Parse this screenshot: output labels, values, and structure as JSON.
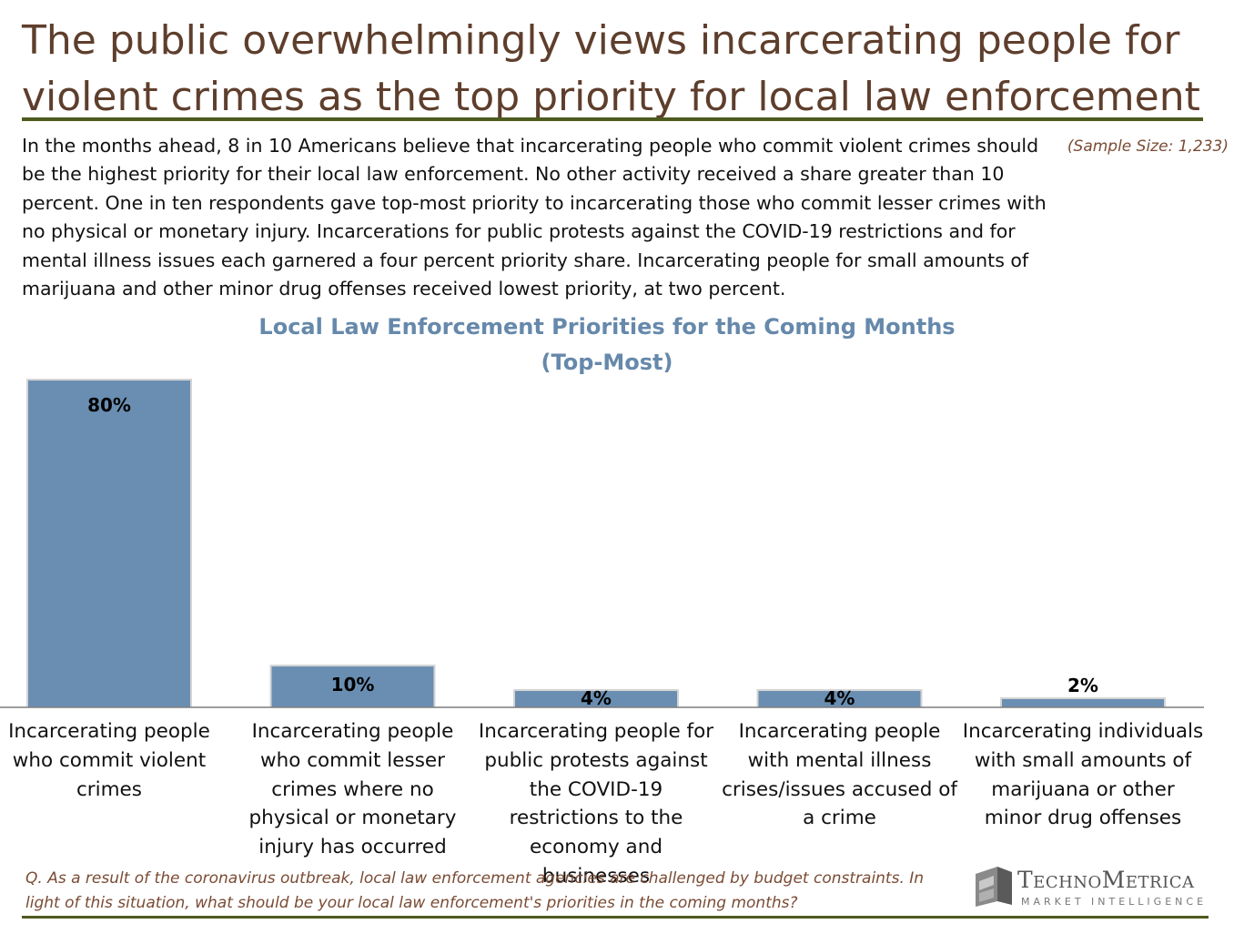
{
  "header": {
    "title_line1": "The public overwhelmingly views incarcerating people for",
    "title_line2": "violent crimes as the top priority for local law enforcement",
    "sample_size": "(Sample Size: 1,233)",
    "summary": "In the months ahead, 8 in 10 Americans believe that incarcerating people who commit violent crimes should be the highest priority for their local law enforcement. No other activity received a share greater than 10 percent. One in ten respondents gave top-most priority to incarcerating those who commit lesser crimes with no physical or monetary injury. Incarcerations for public protests against the COVID-19 restrictions and for mental illness issues each garnered a four percent priority share. Incarcerating people for small amounts of marijuana and other minor drug offenses received lowest priority, at two percent."
  },
  "chart_data": {
    "type": "bar",
    "title": "Local Law Enforcement Priorities for the Coming Months",
    "subtitle": "(Top-Most)",
    "categories": [
      "Incarcerating people who commit violent crimes",
      "Incarcerating people who commit lesser crimes where no physical or monetary injury has occurred",
      "Incarcerating people for public protests against the COVID-19 restrictions to the economy and businesses",
      "Incarcerating people with mental illness crises/issues accused of a crime",
      "Incarcerating individuals with small amounts of marijuana or other minor drug offenses"
    ],
    "values": [
      80,
      10,
      4,
      4,
      2
    ],
    "data_labels": [
      "80%",
      "10%",
      "4%",
      "4%",
      "2%"
    ],
    "ylim": [
      0,
      80
    ],
    "xlabel": "",
    "ylabel": "",
    "grid": false,
    "legend": "none",
    "bar_color": "#6a8eb2"
  },
  "footer": {
    "question": "Q. As a result of the coronavirus outbreak, local law enforcement agencies are challenged by budget constraints. In light of this situation, what should be your local law enforcement's priorities in the coming months?",
    "logo_name": "TechnoMetrica",
    "logo_tagline": "MARKET INTELLIGENCE"
  },
  "colors": {
    "title": "#5e3e2c",
    "rule": "#4d5a1e",
    "chart_title": "#6689ab",
    "bar": "#6a8eb2",
    "note": "#7a4b34"
  }
}
